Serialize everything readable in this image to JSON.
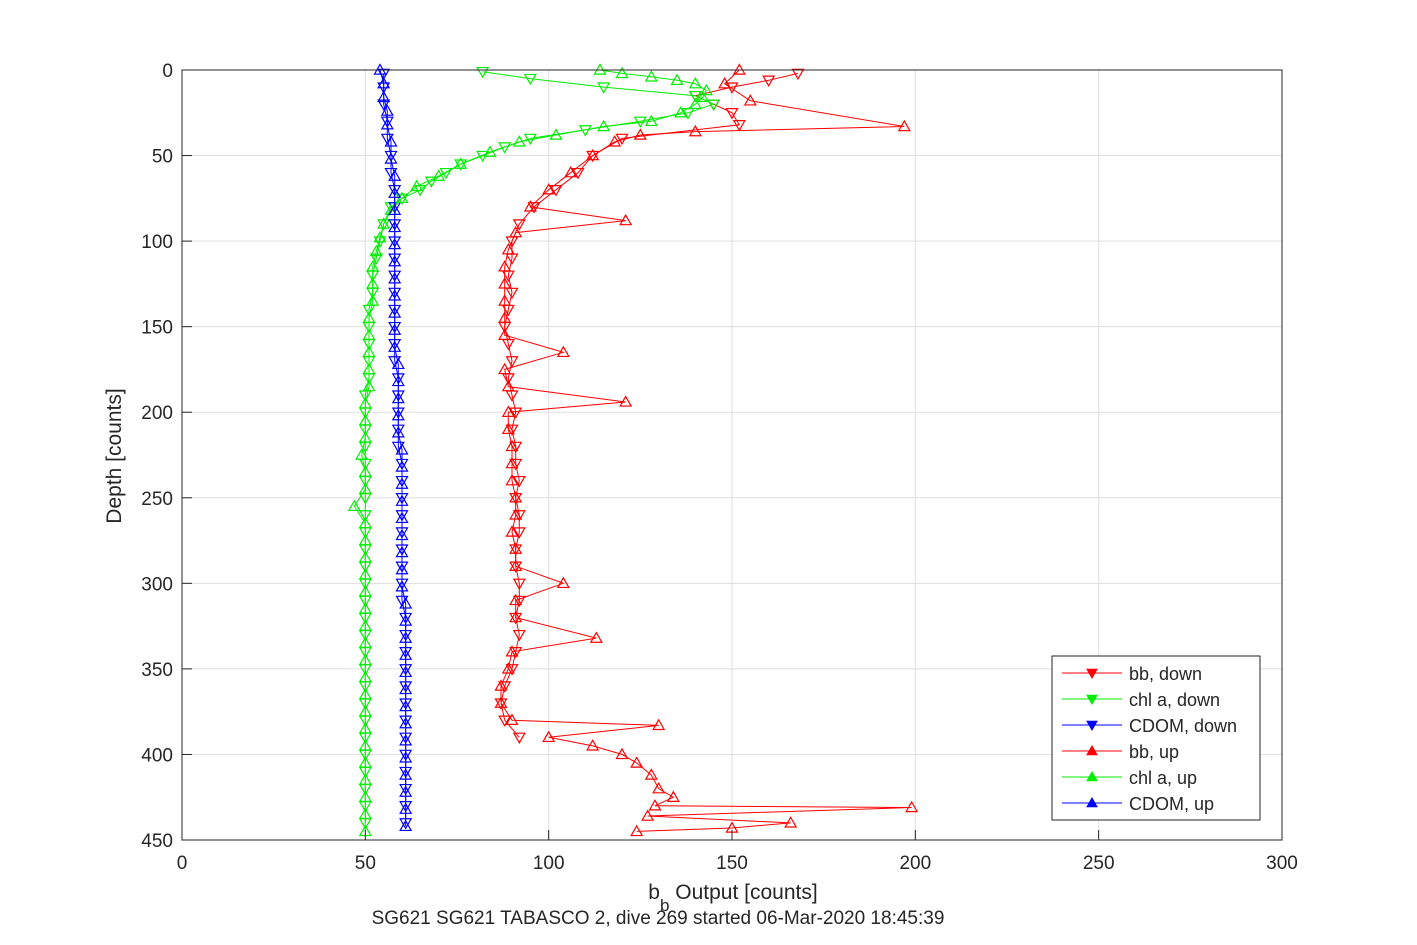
{
  "chart_data": {
    "type": "scatter",
    "title": "",
    "xlabel_main": "b",
    "xlabel_sub": "b",
    "xlabel_rest": " Output [counts]",
    "ylabel": "Depth [counts]",
    "caption": "SG621 SG621 TABASCO 2, dive 269 started 06-Mar-2020 18:45:39",
    "xlim": [
      0,
      300
    ],
    "ylim": [
      450,
      0
    ],
    "y_reversed": true,
    "grid": true,
    "legend_position": "bottom-right",
    "x_ticks": [
      0,
      50,
      100,
      150,
      200,
      250,
      300
    ],
    "x_tick_labels": [
      "0",
      "50",
      "100",
      "150",
      "200",
      "250",
      "300"
    ],
    "y_ticks": [
      0,
      50,
      100,
      150,
      200,
      250,
      300,
      350,
      400,
      450
    ],
    "y_tick_labels": [
      "0",
      "50",
      "100",
      "150",
      "200",
      "250",
      "300",
      "350",
      "400",
      "450"
    ],
    "series": [
      {
        "name": "bb, down",
        "color": "#ff0000",
        "marker": "triangle-down",
        "points": [
          [
            168,
            2
          ],
          [
            160,
            6
          ],
          [
            150,
            10
          ],
          [
            140,
            15
          ],
          [
            145,
            20
          ],
          [
            150,
            25
          ],
          [
            152,
            32
          ],
          [
            120,
            40
          ],
          [
            112,
            50
          ],
          [
            108,
            60
          ],
          [
            102,
            70
          ],
          [
            96,
            80
          ],
          [
            92,
            90
          ],
          [
            90,
            100
          ],
          [
            90,
            110
          ],
          [
            89,
            120
          ],
          [
            90,
            130
          ],
          [
            89,
            140
          ],
          [
            88,
            150
          ],
          [
            89,
            160
          ],
          [
            90,
            170
          ],
          [
            89,
            180
          ],
          [
            90,
            190
          ],
          [
            91,
            200
          ],
          [
            90,
            210
          ],
          [
            91,
            220
          ],
          [
            91,
            230
          ],
          [
            92,
            240
          ],
          [
            91,
            250
          ],
          [
            92,
            260
          ],
          [
            92,
            270
          ],
          [
            91,
            280
          ],
          [
            91,
            290
          ],
          [
            92,
            300
          ],
          [
            92,
            310
          ],
          [
            91,
            320
          ],
          [
            92,
            330
          ],
          [
            91,
            340
          ],
          [
            90,
            350
          ],
          [
            88,
            360
          ],
          [
            87,
            370
          ],
          [
            88,
            380
          ],
          [
            92,
            390
          ]
        ]
      },
      {
        "name": "chl a, down",
        "color": "#00ee00",
        "marker": "triangle-down",
        "points": [
          [
            82,
            1
          ],
          [
            95,
            5
          ],
          [
            115,
            10
          ],
          [
            140,
            15
          ],
          [
            145,
            20
          ],
          [
            138,
            25
          ],
          [
            125,
            30
          ],
          [
            110,
            35
          ],
          [
            95,
            40
          ],
          [
            88,
            45
          ],
          [
            82,
            50
          ],
          [
            76,
            55
          ],
          [
            72,
            60
          ],
          [
            68,
            65
          ],
          [
            65,
            70
          ],
          [
            60,
            75
          ],
          [
            57,
            80
          ],
          [
            55,
            90
          ],
          [
            54,
            100
          ],
          [
            53,
            110
          ],
          [
            52,
            120
          ],
          [
            52,
            130
          ],
          [
            51,
            140
          ],
          [
            51,
            150
          ],
          [
            51,
            160
          ],
          [
            51,
            170
          ],
          [
            51,
            180
          ],
          [
            50,
            190
          ],
          [
            50,
            200
          ],
          [
            50,
            210
          ],
          [
            50,
            220
          ],
          [
            50,
            230
          ],
          [
            50,
            240
          ],
          [
            50,
            250
          ],
          [
            50,
            260
          ],
          [
            50,
            270
          ],
          [
            50,
            280
          ],
          [
            50,
            290
          ],
          [
            50,
            300
          ],
          [
            50,
            310
          ],
          [
            50,
            320
          ],
          [
            50,
            330
          ],
          [
            50,
            340
          ],
          [
            50,
            350
          ],
          [
            50,
            360
          ],
          [
            50,
            370
          ],
          [
            50,
            380
          ],
          [
            50,
            390
          ],
          [
            50,
            400
          ],
          [
            50,
            410
          ],
          [
            50,
            420
          ],
          [
            50,
            430
          ],
          [
            50,
            440
          ]
        ]
      },
      {
        "name": "CDOM, down",
        "color": "#0000ff",
        "marker": "triangle-down",
        "points": [
          [
            55,
            2
          ],
          [
            55,
            10
          ],
          [
            55,
            20
          ],
          [
            56,
            30
          ],
          [
            56,
            40
          ],
          [
            57,
            50
          ],
          [
            57,
            60
          ],
          [
            58,
            70
          ],
          [
            58,
            80
          ],
          [
            58,
            90
          ],
          [
            58,
            100
          ],
          [
            58,
            110
          ],
          [
            58,
            120
          ],
          [
            58,
            130
          ],
          [
            58,
            140
          ],
          [
            58,
            150
          ],
          [
            58,
            160
          ],
          [
            58,
            170
          ],
          [
            59,
            180
          ],
          [
            59,
            190
          ],
          [
            59,
            200
          ],
          [
            59,
            210
          ],
          [
            59,
            220
          ],
          [
            60,
            230
          ],
          [
            60,
            240
          ],
          [
            60,
            250
          ],
          [
            60,
            260
          ],
          [
            60,
            270
          ],
          [
            60,
            280
          ],
          [
            60,
            290
          ],
          [
            60,
            300
          ],
          [
            60,
            310
          ],
          [
            61,
            320
          ],
          [
            61,
            330
          ],
          [
            61,
            340
          ],
          [
            61,
            350
          ],
          [
            61,
            360
          ],
          [
            61,
            370
          ],
          [
            61,
            380
          ],
          [
            61,
            390
          ],
          [
            61,
            400
          ],
          [
            61,
            410
          ],
          [
            61,
            420
          ],
          [
            61,
            430
          ],
          [
            61,
            440
          ]
        ]
      },
      {
        "name": "bb, up",
        "color": "#ff0000",
        "marker": "triangle-up",
        "points": [
          [
            152,
            0
          ],
          [
            148,
            8
          ],
          [
            155,
            18
          ],
          [
            197,
            33
          ],
          [
            140,
            36
          ],
          [
            125,
            38
          ],
          [
            118,
            42
          ],
          [
            112,
            50
          ],
          [
            106,
            60
          ],
          [
            100,
            70
          ],
          [
            95,
            80
          ],
          [
            121,
            88
          ],
          [
            91,
            95
          ],
          [
            89,
            105
          ],
          [
            88,
            115
          ],
          [
            88,
            125
          ],
          [
            88,
            135
          ],
          [
            88,
            145
          ],
          [
            88,
            155
          ],
          [
            104,
            165
          ],
          [
            88,
            175
          ],
          [
            89,
            185
          ],
          [
            121,
            194
          ],
          [
            89,
            200
          ],
          [
            89,
            210
          ],
          [
            90,
            220
          ],
          [
            90,
            230
          ],
          [
            90,
            240
          ],
          [
            91,
            250
          ],
          [
            91,
            260
          ],
          [
            90,
            270
          ],
          [
            91,
            280
          ],
          [
            91,
            290
          ],
          [
            104,
            300
          ],
          [
            91,
            310
          ],
          [
            91,
            320
          ],
          [
            113,
            332
          ],
          [
            90,
            340
          ],
          [
            89,
            350
          ],
          [
            87,
            360
          ],
          [
            87,
            370
          ],
          [
            90,
            380
          ],
          [
            130,
            383
          ],
          [
            100,
            390
          ],
          [
            112,
            395
          ],
          [
            120,
            400
          ],
          [
            124,
            405
          ],
          [
            128,
            412
          ],
          [
            130,
            420
          ],
          [
            134,
            425
          ],
          [
            129,
            430
          ],
          [
            199,
            431
          ],
          [
            127,
            436
          ],
          [
            166,
            440
          ],
          [
            150,
            443
          ],
          [
            124,
            445
          ]
        ]
      },
      {
        "name": "chl a, up",
        "color": "#00ee00",
        "marker": "triangle-up",
        "points": [
          [
            114,
            0
          ],
          [
            120,
            2
          ],
          [
            128,
            4
          ],
          [
            135,
            6
          ],
          [
            140,
            8
          ],
          [
            143,
            12
          ],
          [
            142,
            16
          ],
          [
            140,
            20
          ],
          [
            136,
            25
          ],
          [
            128,
            30
          ],
          [
            115,
            33
          ],
          [
            102,
            38
          ],
          [
            92,
            42
          ],
          [
            84,
            48
          ],
          [
            76,
            55
          ],
          [
            70,
            62
          ],
          [
            64,
            68
          ],
          [
            60,
            75
          ],
          [
            57,
            82
          ],
          [
            55,
            90
          ],
          [
            54,
            98
          ],
          [
            53,
            106
          ],
          [
            52,
            115
          ],
          [
            52,
            125
          ],
          [
            52,
            135
          ],
          [
            51,
            145
          ],
          [
            51,
            155
          ],
          [
            51,
            165
          ],
          [
            51,
            175
          ],
          [
            51,
            185
          ],
          [
            50,
            195
          ],
          [
            50,
            205
          ],
          [
            50,
            215
          ],
          [
            49,
            225
          ],
          [
            50,
            235
          ],
          [
            50,
            245
          ],
          [
            47,
            255
          ],
          [
            50,
            265
          ],
          [
            50,
            275
          ],
          [
            50,
            285
          ],
          [
            50,
            295
          ],
          [
            50,
            305
          ],
          [
            50,
            315
          ],
          [
            50,
            325
          ],
          [
            50,
            335
          ],
          [
            50,
            345
          ],
          [
            50,
            355
          ],
          [
            50,
            365
          ],
          [
            50,
            375
          ],
          [
            50,
            385
          ],
          [
            50,
            395
          ],
          [
            50,
            405
          ],
          [
            50,
            415
          ],
          [
            50,
            425
          ],
          [
            50,
            435
          ],
          [
            50,
            445
          ]
        ]
      },
      {
        "name": "CDOM, up",
        "color": "#0000ff",
        "marker": "triangle-up",
        "points": [
          [
            54,
            0
          ],
          [
            55,
            8
          ],
          [
            55,
            16
          ],
          [
            56,
            24
          ],
          [
            56,
            32
          ],
          [
            57,
            42
          ],
          [
            57,
            52
          ],
          [
            58,
            62
          ],
          [
            58,
            72
          ],
          [
            58,
            82
          ],
          [
            58,
            92
          ],
          [
            58,
            102
          ],
          [
            58,
            112
          ],
          [
            58,
            122
          ],
          [
            58,
            132
          ],
          [
            58,
            142
          ],
          [
            58,
            152
          ],
          [
            58,
            162
          ],
          [
            59,
            172
          ],
          [
            59,
            182
          ],
          [
            59,
            192
          ],
          [
            59,
            202
          ],
          [
            59,
            212
          ],
          [
            60,
            222
          ],
          [
            60,
            232
          ],
          [
            60,
            242
          ],
          [
            60,
            252
          ],
          [
            60,
            262
          ],
          [
            60,
            272
          ],
          [
            60,
            282
          ],
          [
            60,
            292
          ],
          [
            60,
            302
          ],
          [
            61,
            312
          ],
          [
            61,
            322
          ],
          [
            61,
            332
          ],
          [
            61,
            342
          ],
          [
            61,
            352
          ],
          [
            61,
            362
          ],
          [
            61,
            372
          ],
          [
            61,
            382
          ],
          [
            61,
            392
          ],
          [
            61,
            402
          ],
          [
            61,
            412
          ],
          [
            61,
            422
          ],
          [
            61,
            432
          ],
          [
            61,
            442
          ]
        ]
      }
    ]
  }
}
